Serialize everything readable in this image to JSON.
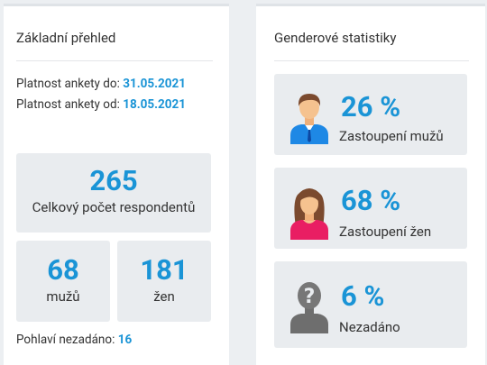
{
  "overview": {
    "title": "Základní přehled",
    "valid_to_label": "Platnost ankety do:",
    "valid_to": "31.05.2021",
    "valid_from_label": "Platnost ankety od:",
    "valid_from": "18.05.2021",
    "total": "265",
    "total_label": "Celkový počet respondentů",
    "men": "68",
    "men_label": "mužů",
    "women": "181",
    "women_label": "žen",
    "unspecified_label": "Pohlaví nezadáno:",
    "unspecified": "16"
  },
  "gender": {
    "title": "Genderové statistiky",
    "items": [
      {
        "percent": "26 %",
        "label": "Zastoupení mužů"
      },
      {
        "percent": "68 %",
        "label": "Zastoupení žen"
      },
      {
        "percent": "6 %",
        "label": "Nezadáno",
        "icon": "?"
      }
    ]
  }
}
